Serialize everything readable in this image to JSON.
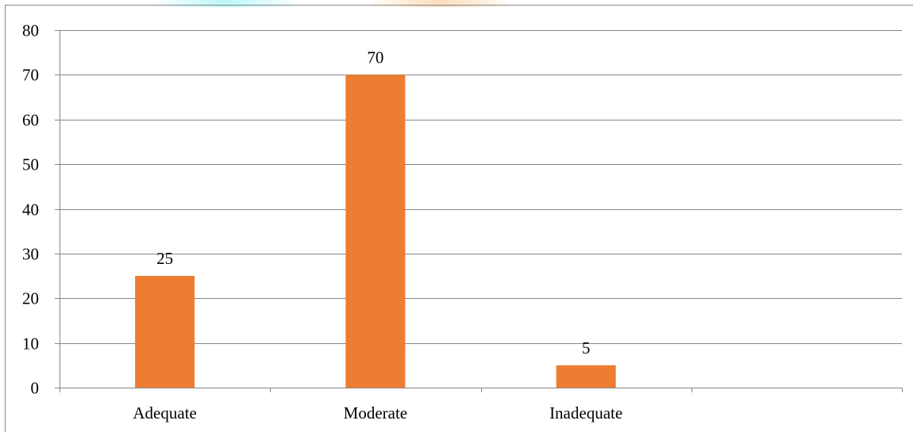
{
  "chart_data": {
    "type": "bar",
    "categories": [
      "Adequate",
      "Moderate",
      "Inadequate",
      ""
    ],
    "values": [
      25,
      70,
      5,
      null
    ],
    "data_labels": [
      "25",
      "70",
      "5",
      ""
    ],
    "title": "",
    "xlabel": "",
    "ylabel": "",
    "ylim": [
      0,
      80
    ],
    "yticks": [
      0,
      10,
      20,
      30,
      40,
      50,
      60,
      70,
      80
    ],
    "grid": true,
    "legend": "none",
    "bar_color": "#ED7D31",
    "grid_color": "#868686"
  }
}
